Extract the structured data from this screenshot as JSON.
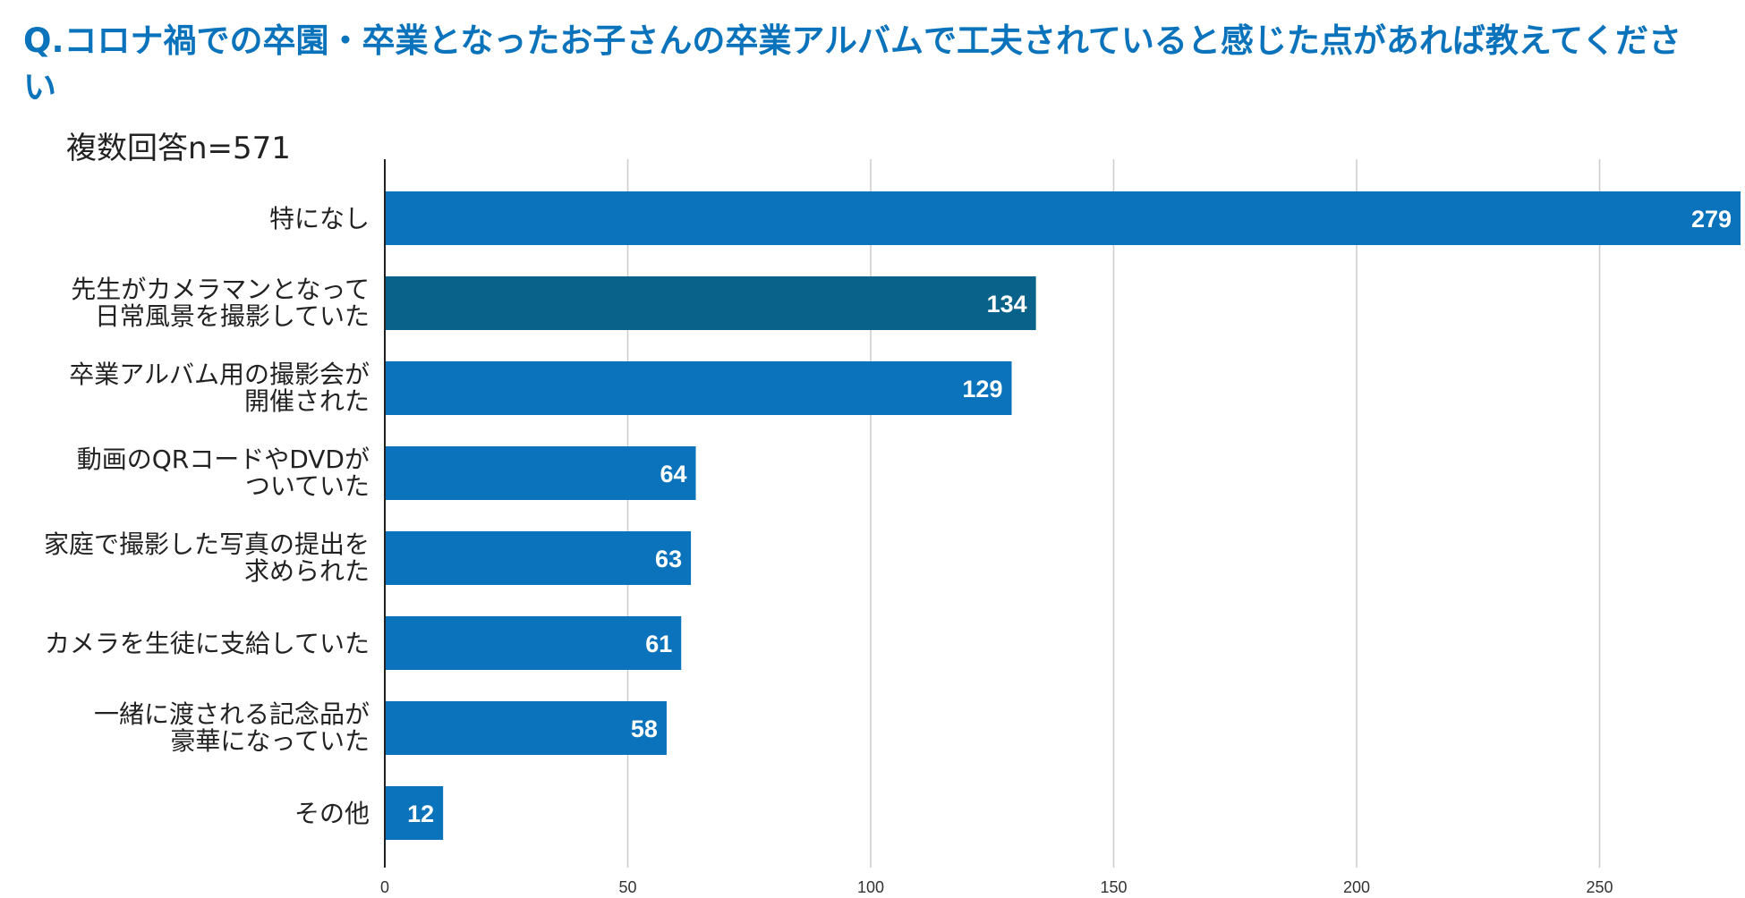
{
  "title": "Q.コロナ禍での卒園・卒業となったお子さんの卒業アルバムで工夫されていると感じた点があれば教えてください",
  "subtitle": "複数回答n=571",
  "chart_data": {
    "type": "bar",
    "orientation": "horizontal",
    "categories": [
      [
        "特になし"
      ],
      [
        "先生がカメラマンとなって",
        "日常風景を撮影していた"
      ],
      [
        "卒業アルバム用の撮影会が",
        "開催された"
      ],
      [
        "動画のQRコードやDVDが",
        "ついていた"
      ],
      [
        "家庭で撮影した写真の提出を",
        "求められた"
      ],
      [
        "カメラを生徒に支給していた"
      ],
      [
        "一緒に渡される記念品が",
        "豪華になっていた"
      ],
      [
        "その他"
      ]
    ],
    "values": [
      279,
      134,
      129,
      64,
      63,
      61,
      58,
      12
    ],
    "xticks": [
      0,
      50,
      100,
      150,
      200,
      250
    ],
    "xlim": [
      0,
      279
    ],
    "grid": true,
    "colors": {
      "bar": "#0a73bb",
      "highlight": "#08628a",
      "grid": "#cccccc",
      "axis": "#222222"
    },
    "highlight_index": 1
  }
}
